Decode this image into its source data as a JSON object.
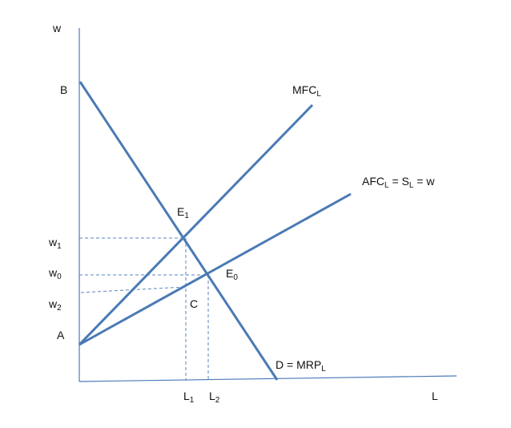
{
  "diagram": {
    "axis": {
      "y_label": "w",
      "x_label": "L"
    },
    "points": {
      "B": "B",
      "A": "A",
      "E1": {
        "main": "E",
        "sub": "1"
      },
      "E0": {
        "main": "E",
        "sub": "0"
      },
      "C": "C"
    },
    "y_ticks": {
      "w1": {
        "main": "w",
        "sub": "1"
      },
      "w0": {
        "main": "w",
        "sub": "0"
      },
      "w2": {
        "main": "w",
        "sub": "2"
      }
    },
    "x_ticks": {
      "L1": {
        "main": "L",
        "sub": "1"
      },
      "L2": {
        "main": "L",
        "sub": "2"
      }
    },
    "curves": {
      "mfc": {
        "main": "MFC",
        "sub": "L"
      },
      "afc": {
        "p1": "AFC",
        "s1": "L",
        "p2": " = S",
        "s2": "L",
        "p3": " = w"
      },
      "demand": {
        "main": "D = MRP",
        "sub": "L"
      }
    },
    "colors": {
      "line": "#4a7ab5",
      "dash": "#5a86bd",
      "text": "#111111"
    }
  }
}
